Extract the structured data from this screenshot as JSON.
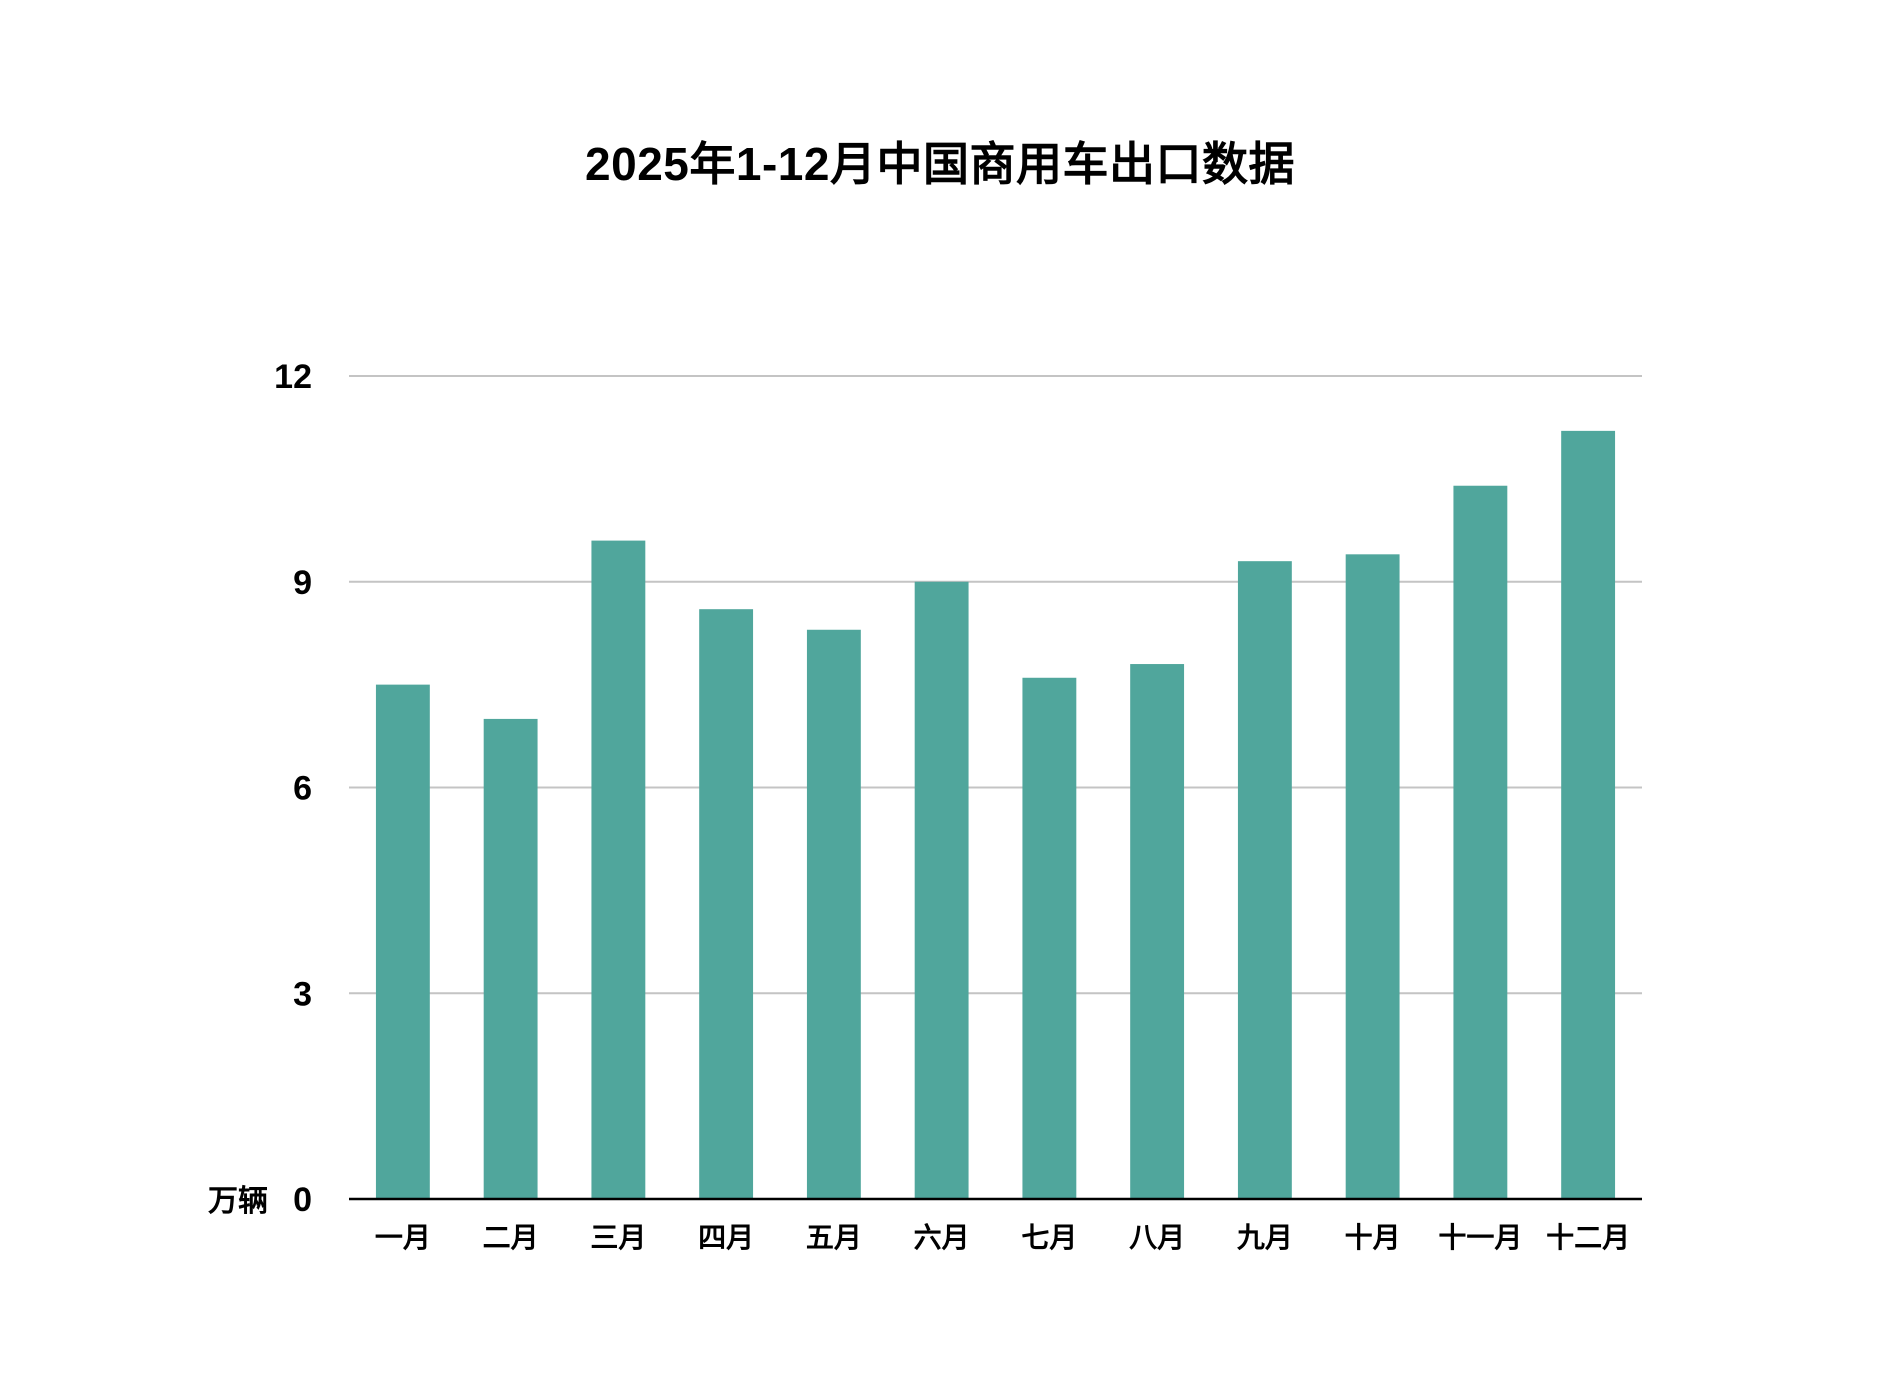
{
  "chart_data": {
    "type": "bar",
    "title": "2025年1-12月中国商用车出口数据",
    "xlabel": "",
    "ylabel": "",
    "y_unit": "万辆",
    "ylim": [
      0,
      12
    ],
    "yticks": [
      0,
      3,
      6,
      9,
      12
    ],
    "grid": true,
    "legend": "none",
    "bar_color": "#50A69C",
    "categories": [
      "一月",
      "二月",
      "三月",
      "四月",
      "五月",
      "六月",
      "七月",
      "八月",
      "九月",
      "十月",
      "十一月",
      "十二月"
    ],
    "values": [
      7.5,
      7.0,
      9.6,
      8.6,
      8.3,
      9.0,
      7.6,
      7.8,
      9.3,
      9.4,
      10.4,
      11.2
    ]
  }
}
